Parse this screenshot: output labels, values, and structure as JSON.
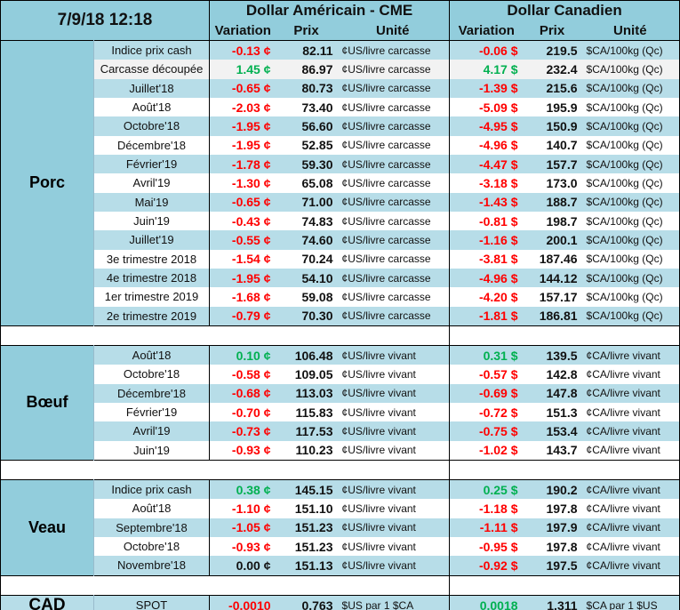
{
  "header": {
    "datetime": "7/9/18 12:18",
    "usd_title": "Dollar Américain - CME",
    "cad_title": "Dollar Canadien",
    "variation": "Variation",
    "prix": "Prix",
    "unite": "Unité"
  },
  "sections": [
    {
      "label": "Porc",
      "rows": [
        [
          "Indice prix cash",
          "-0.13 ¢",
          "down",
          "82.11",
          "¢US/livre carcasse",
          "-0.06 $",
          "down",
          "219.5",
          "$CA/100kg (Qc)"
        ],
        [
          "Carcasse découpée",
          "1.45 ¢",
          "up",
          "86.97",
          "¢US/livre carcasse",
          "4.17 $",
          "up",
          "232.4",
          "$CA/100kg (Qc)"
        ],
        [
          "Juillet'18",
          "-0.65 ¢",
          "down",
          "80.73",
          "¢US/livre carcasse",
          "-1.39 $",
          "down",
          "215.6",
          "$CA/100kg (Qc)"
        ],
        [
          "Août'18",
          "-2.03 ¢",
          "down",
          "73.40",
          "¢US/livre carcasse",
          "-5.09 $",
          "down",
          "195.9",
          "$CA/100kg (Qc)"
        ],
        [
          "Octobre'18",
          "-1.95 ¢",
          "down",
          "56.60",
          "¢US/livre carcasse",
          "-4.95 $",
          "down",
          "150.9",
          "$CA/100kg (Qc)"
        ],
        [
          "Décembre'18",
          "-1.95 ¢",
          "down",
          "52.85",
          "¢US/livre carcasse",
          "-4.96 $",
          "down",
          "140.7",
          "$CA/100kg (Qc)"
        ],
        [
          "Février'19",
          "-1.78 ¢",
          "down",
          "59.30",
          "¢US/livre carcasse",
          "-4.47 $",
          "down",
          "157.7",
          "$CA/100kg (Qc)"
        ],
        [
          "Avril'19",
          "-1.30 ¢",
          "down",
          "65.08",
          "¢US/livre carcasse",
          "-3.18 $",
          "down",
          "173.0",
          "$CA/100kg (Qc)"
        ],
        [
          "Mai'19",
          "-0.65 ¢",
          "down",
          "71.00",
          "¢US/livre carcasse",
          "-1.43 $",
          "down",
          "188.7",
          "$CA/100kg (Qc)"
        ],
        [
          "Juin'19",
          "-0.43 ¢",
          "down",
          "74.83",
          "¢US/livre carcasse",
          "-0.81 $",
          "down",
          "198.7",
          "$CA/100kg (Qc)"
        ],
        [
          "Juillet'19",
          "-0.55 ¢",
          "down",
          "74.60",
          "¢US/livre carcasse",
          "-1.16 $",
          "down",
          "200.1",
          "$CA/100kg (Qc)"
        ],
        [
          "3e trimestre 2018",
          "-1.54 ¢",
          "down",
          "70.24",
          "¢US/livre carcasse",
          "-3.81 $",
          "down",
          "187.46",
          "$CA/100kg (Qc)"
        ],
        [
          "4e trimestre 2018",
          "-1.95 ¢",
          "down",
          "54.10",
          "¢US/livre carcasse",
          "-4.96 $",
          "down",
          "144.12",
          "$CA/100kg (Qc)"
        ],
        [
          "1er trimestre 2019",
          "-1.68 ¢",
          "down",
          "59.08",
          "¢US/livre carcasse",
          "-4.20 $",
          "down",
          "157.17",
          "$CA/100kg (Qc)"
        ],
        [
          "2e trimestre 2019",
          "-0.79 ¢",
          "down",
          "70.30",
          "¢US/livre carcasse",
          "-1.81 $",
          "down",
          "186.81",
          "$CA/100kg (Qc)"
        ]
      ]
    },
    {
      "label": "Bœuf",
      "rows": [
        [
          "Août'18",
          "0.10 ¢",
          "up",
          "106.48",
          "¢US/livre vivant",
          "0.31 $",
          "up",
          "139.5",
          "¢CA/livre vivant"
        ],
        [
          "Octobre'18",
          "-0.58 ¢",
          "down",
          "109.05",
          "¢US/livre vivant",
          "-0.57 $",
          "down",
          "142.8",
          "¢CA/livre vivant"
        ],
        [
          "Décembre'18",
          "-0.68 ¢",
          "down",
          "113.03",
          "¢US/livre vivant",
          "-0.69 $",
          "down",
          "147.8",
          "¢CA/livre vivant"
        ],
        [
          "Février'19",
          "-0.70 ¢",
          "down",
          "115.83",
          "¢US/livre vivant",
          "-0.72 $",
          "down",
          "151.3",
          "¢CA/livre vivant"
        ],
        [
          "Avril'19",
          "-0.73 ¢",
          "down",
          "117.53",
          "¢US/livre vivant",
          "-0.75 $",
          "down",
          "153.4",
          "¢CA/livre vivant"
        ],
        [
          "Juin'19",
          "-0.93 ¢",
          "down",
          "110.23",
          "¢US/livre vivant",
          "-1.02 $",
          "down",
          "143.7",
          "¢CA/livre vivant"
        ]
      ]
    },
    {
      "label": "Veau",
      "rows": [
        [
          "Indice prix cash",
          "0.38 ¢",
          "up",
          "145.15",
          "¢US/livre vivant",
          "0.25 $",
          "up",
          "190.2",
          "¢CA/livre vivant"
        ],
        [
          "Août'18",
          "-1.10 ¢",
          "down",
          "151.10",
          "¢US/livre vivant",
          "-1.18 $",
          "down",
          "197.8",
          "¢CA/livre vivant"
        ],
        [
          "Septembre'18",
          "-1.05 ¢",
          "down",
          "151.23",
          "¢US/livre vivant",
          "-1.11 $",
          "down",
          "197.9",
          "¢CA/livre vivant"
        ],
        [
          "Octobre'18",
          "-0.93 ¢",
          "down",
          "151.23",
          "¢US/livre vivant",
          "-0.95 $",
          "down",
          "197.8",
          "¢CA/livre vivant"
        ],
        [
          "Novembre'18",
          "0.00 ¢",
          "flat",
          "151.13",
          "¢US/livre vivant",
          "-0.92 $",
          "down",
          "197.5",
          "¢CA/livre vivant"
        ]
      ]
    }
  ],
  "cad": {
    "label": "CAD",
    "name": "SPOT",
    "us_var": "-0.0010",
    "us_trend": "down",
    "us_price": "0.763",
    "us_unit": "$US par 1 $CA",
    "ca_var": "0.0018",
    "ca_trend": "up",
    "ca_price": "1.311",
    "ca_unit": "$CA par 1 $US"
  },
  "colors": {
    "header": "#92cddc",
    "row_alt": "#b7dde8",
    "down": "#ff0000",
    "up": "#00b050"
  }
}
